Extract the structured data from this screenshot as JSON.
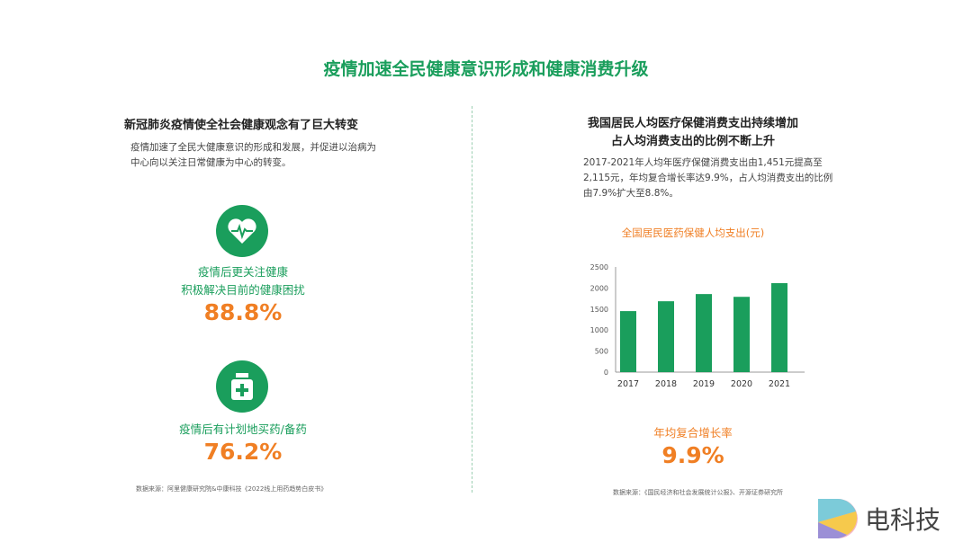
{
  "title": "疫情加速全民健康意识形成和健康消费升级",
  "left": {
    "heading": "新冠肺炎疫情使全社会健康观念有了巨大转变",
    "desc_line1": "疫情加速了全民大健康意识的形成和发展，并促进以治病为",
    "desc_line2": "中心向以关注日常健康为中心的转变。",
    "stat1": {
      "icon": "heart-pulse-icon",
      "label1": "疫情后更关注健康",
      "label2": "积极解决目前的健康困扰",
      "value": "88.8%"
    },
    "stat2": {
      "icon": "medicine-bottle-icon",
      "label1": "疫情后有计划地买药/备药",
      "value": "76.2%"
    },
    "source": "数据来源：阿里健康研究院&中康科技《2022线上用药趋势白皮书》"
  },
  "right": {
    "heading1": "我国居民人均医疗保健消费支出持续增加",
    "heading2": "占人均消费支出的比例不断上升",
    "desc_line1": "2017-2021年人均年医疗保健消费支出由1,451元提高至",
    "desc_line2": "2,115元，年均复合增长率达9.9%，占人均消费支出的比例",
    "desc_line3": "由7.9%扩大至8.8%。",
    "cagr_label": "年均复合增长率",
    "cagr_value": "9.9%",
    "source": "数据来源：《国民经济和社会发展统计公报》、开源证券研究所"
  },
  "chart_data": {
    "type": "bar",
    "title": "全国居民医药保健人均支出(元)",
    "categories": [
      "2017",
      "2018",
      "2019",
      "2020",
      "2021"
    ],
    "values": [
      1451,
      1685,
      1856,
      1790,
      2115
    ],
    "yticks": [
      "0",
      "500",
      "1000",
      "1500",
      "2000",
      "2500"
    ],
    "ylim": [
      0,
      2500
    ],
    "color": "#1a9e5c"
  },
  "logo": {
    "text": "电科技"
  }
}
